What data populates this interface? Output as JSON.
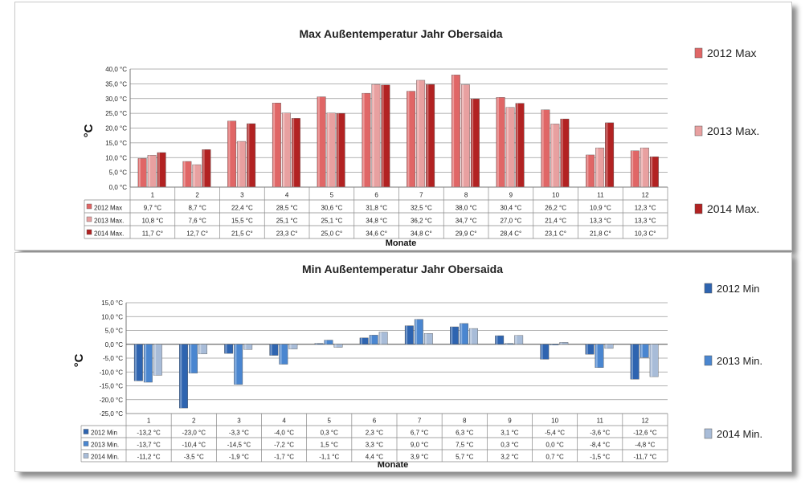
{
  "charts": {
    "max": {
      "type": "bar",
      "title": "Max Außentemperatur Jahr Obersaida",
      "ylabel": "°C",
      "xlabel": "Monate",
      "ylim": [
        0,
        40
      ],
      "ytick_step": 5,
      "ytick_labels": [
        "0,0 °C",
        "5,0 °C",
        "10,0 °C",
        "15,0 °C",
        "20,0 °C",
        "25,0 °C",
        "30,0 °C",
        "35,0 °C",
        "40,0 °C"
      ],
      "categories": [
        "1",
        "2",
        "3",
        "4",
        "5",
        "6",
        "7",
        "8",
        "9",
        "10",
        "11",
        "12"
      ],
      "legend": [
        "2012 Max",
        "2013 Max.",
        "2014 Max."
      ],
      "series": [
        {
          "name": "2012 Max",
          "short": "2012 Max",
          "color": "#e06666",
          "values": [
            9.7,
            8.7,
            22.4,
            28.5,
            30.6,
            31.8,
            32.5,
            38.0,
            30.4,
            26.2,
            10.9,
            12.3
          ],
          "labels": [
            "9,7 °C",
            "8,7 °C",
            "22,4 °C",
            "28,5 °C",
            "30,6 °C",
            "31,8 °C",
            "32,5 °C",
            "38,0 °C",
            "30,4 °C",
            "26,2 °C",
            "10,9 °C",
            "12,3 °C"
          ]
        },
        {
          "name": "2013 Max.",
          "short": "2013 Max.",
          "color": "#e8a0a0",
          "values": [
            10.8,
            7.6,
            15.5,
            25.1,
            25.1,
            34.8,
            36.2,
            34.7,
            27.0,
            21.4,
            13.3,
            13.3
          ],
          "labels": [
            "10,8 °C",
            "7,6 °C",
            "15,5 °C",
            "25,1 °C",
            "25,1 °C",
            "34,8 °C",
            "36,2 °C",
            "34,7 °C",
            "27,0 °C",
            "21,4 °C",
            "13,3 °C",
            "13,3 °C"
          ]
        },
        {
          "name": "2014 Max.",
          "short": "2014 Max.",
          "color": "#b22222",
          "values": [
            11.7,
            12.7,
            21.5,
            23.3,
            25.0,
            34.6,
            34.8,
            29.9,
            28.4,
            23.1,
            21.8,
            10.3
          ],
          "labels": [
            "11,7 C°",
            "12,7 C°",
            "21,5 C°",
            "23,3 C°",
            "25,0 C°",
            "34,6 C°",
            "34,8 C°",
            "29,9 C°",
            "28,4 C°",
            "23,1 C°",
            "21,8 C°",
            "10,3 C°"
          ]
        }
      ]
    },
    "min": {
      "type": "bar",
      "title": "Min  Außentemperatur Jahr Obersaida",
      "ylabel": "°C",
      "xlabel": "Monate",
      "ylim": [
        -25,
        15
      ],
      "ytick_step": 5,
      "ytick_labels": [
        "-25,0 °C",
        "-20,0 °C",
        "-15,0 °C",
        "-10,0 °C",
        "-5,0 °C",
        "0,0 °C",
        "5,0 °C",
        "10,0 °C",
        "15,0 °C"
      ],
      "categories": [
        "1",
        "2",
        "3",
        "4",
        "5",
        "6",
        "7",
        "8",
        "9",
        "10",
        "11",
        "12"
      ],
      "legend": [
        "2012 Min",
        "2013 Min.",
        "2014 Min."
      ],
      "series": [
        {
          "name": "2012 Min",
          "short": "2012 Min",
          "color": "#2e64b0",
          "values": [
            -13.2,
            -23.0,
            -3.3,
            -4.0,
            0.3,
            2.3,
            6.7,
            6.3,
            3.1,
            -5.4,
            -3.6,
            -12.6
          ],
          "labels": [
            "-13,2 °C",
            "-23,0 °C",
            "-3,3 °C",
            "-4,0 °C",
            "0,3 °C",
            "2,3 °C",
            "6,7 °C",
            "6,3 °C",
            "3,1 °C",
            "-5,4 °C",
            "-3,6 °C",
            "-12,6 °C"
          ]
        },
        {
          "name": "2013 Min.",
          "short": "2013 Min.",
          "color": "#4a86d0",
          "values": [
            -13.7,
            -10.4,
            -14.5,
            -7.2,
            1.5,
            3.3,
            9.0,
            7.5,
            0.3,
            0.0,
            -8.4,
            -4.8
          ],
          "labels": [
            "-13,7 °C",
            "-10,4 °C",
            "-14,5 °C",
            "-7,2 °C",
            "1,5 °C",
            "3,3 °C",
            "9,0 °C",
            "7,5 °C",
            "0,3 °C",
            "0,0 °C",
            "-8,4 °C",
            "-4,8 °C"
          ]
        },
        {
          "name": "2014 Min.",
          "short": "2014 Min.",
          "color": "#a8bcd8",
          "values": [
            -11.2,
            -3.5,
            -1.9,
            -1.7,
            -1.1,
            4.4,
            3.9,
            5.7,
            3.2,
            0.7,
            -1.5,
            -11.7
          ],
          "labels": [
            "-11,2 °C",
            "-3,5 °C",
            "-1,9 °C",
            "-1,7 °C",
            "-1,1 °C",
            "4,4 °C",
            "3,9 °C",
            "5,7 °C",
            "3,2 °C",
            "0,7 °C",
            "-1,5 °C",
            "-11,7 °C"
          ]
        }
      ]
    }
  },
  "chart_data": [
    {
      "type": "bar",
      "title": "Max Außentemperatur Jahr Obersaida",
      "xlabel": "Monate",
      "ylabel": "°C",
      "ylim": [
        0,
        40
      ],
      "categories": [
        "1",
        "2",
        "3",
        "4",
        "5",
        "6",
        "7",
        "8",
        "9",
        "10",
        "11",
        "12"
      ],
      "series": [
        {
          "name": "2012 Max",
          "values": [
            9.7,
            8.7,
            22.4,
            28.5,
            30.6,
            31.8,
            32.5,
            38.0,
            30.4,
            26.2,
            10.9,
            12.3
          ]
        },
        {
          "name": "2013 Max.",
          "values": [
            10.8,
            7.6,
            15.5,
            25.1,
            25.1,
            34.8,
            36.2,
            34.7,
            27.0,
            21.4,
            13.3,
            13.3
          ]
        },
        {
          "name": "2014 Max.",
          "values": [
            11.7,
            12.7,
            21.5,
            23.3,
            25.0,
            34.6,
            34.8,
            29.9,
            28.4,
            23.1,
            21.8,
            10.3
          ]
        }
      ],
      "grid": true,
      "legend_position": "right"
    },
    {
      "type": "bar",
      "title": "Min  Außentemperatur Jahr Obersaida",
      "xlabel": "Monate",
      "ylabel": "°C",
      "ylim": [
        -25,
        15
      ],
      "categories": [
        "1",
        "2",
        "3",
        "4",
        "5",
        "6",
        "7",
        "8",
        "9",
        "10",
        "11",
        "12"
      ],
      "series": [
        {
          "name": "2012 Min",
          "values": [
            -13.2,
            -23.0,
            -3.3,
            -4.0,
            0.3,
            2.3,
            6.7,
            6.3,
            3.1,
            -5.4,
            -3.6,
            -12.6
          ]
        },
        {
          "name": "2013 Min.",
          "values": [
            -13.7,
            -10.4,
            -14.5,
            -7.2,
            1.5,
            3.3,
            9.0,
            7.5,
            0.3,
            0.0,
            -8.4,
            -4.8
          ]
        },
        {
          "name": "2014 Min.",
          "values": [
            -11.2,
            -3.5,
            -1.9,
            -1.7,
            -1.1,
            4.4,
            3.9,
            5.7,
            3.2,
            0.7,
            -1.5,
            -11.7
          ]
        }
      ],
      "grid": true,
      "legend_position": "right"
    }
  ]
}
